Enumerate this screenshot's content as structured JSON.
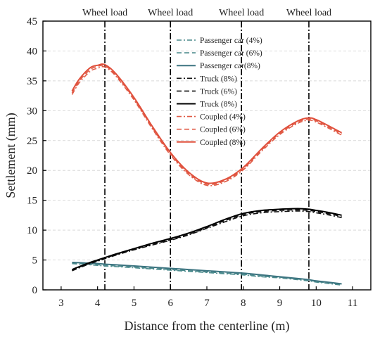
{
  "chart_data": {
    "type": "line",
    "xlabel": "Distance from the centerline (m)",
    "ylabel": "Settlement (mm)",
    "xlim": [
      2.5,
      11.5
    ],
    "ylim": [
      0,
      45
    ],
    "xticks": [
      3,
      4,
      5,
      6,
      7,
      8,
      9,
      10,
      11
    ],
    "yticks": [
      0,
      5,
      10,
      15,
      20,
      25,
      30,
      35,
      40,
      45
    ],
    "grid": true,
    "legend_placement": "top-center",
    "wheel_loads": [
      {
        "x": 4.2,
        "label": "Wheel load"
      },
      {
        "x": 6.0,
        "label": "Wheel load"
      },
      {
        "x": 7.95,
        "label": "Wheel load"
      },
      {
        "x": 9.8,
        "label": "Wheel load"
      }
    ],
    "x": [
      3.3,
      3.5,
      3.8,
      4.0,
      4.2,
      4.5,
      5.0,
      5.5,
      6.0,
      6.5,
      7.0,
      7.5,
      8.0,
      8.5,
      9.0,
      9.5,
      9.8,
      10.0,
      10.3,
      10.7
    ],
    "series": [
      {
        "name": "Passenger car (4%)",
        "color": "#4a8a8c",
        "dash": "dashdot",
        "values": [
          4.4,
          4.3,
          4.2,
          4.1,
          4.0,
          3.9,
          3.7,
          3.5,
          3.3,
          3.1,
          2.9,
          2.7,
          2.5,
          2.2,
          2.0,
          1.7,
          1.5,
          1.3,
          1.1,
          0.8
        ]
      },
      {
        "name": "Passenger car (6%)",
        "color": "#4a8a8c",
        "dash": "dash",
        "values": [
          4.5,
          4.4,
          4.3,
          4.2,
          4.1,
          4.0,
          3.8,
          3.6,
          3.4,
          3.2,
          3.0,
          2.8,
          2.6,
          2.3,
          2.1,
          1.8,
          1.6,
          1.4,
          1.2,
          0.9
        ]
      },
      {
        "name": "Passenger car(8%)",
        "color": "#3c7480",
        "dash": "solid",
        "values": [
          4.6,
          4.55,
          4.45,
          4.4,
          4.3,
          4.2,
          4.0,
          3.8,
          3.6,
          3.4,
          3.2,
          3.0,
          2.8,
          2.5,
          2.2,
          1.9,
          1.7,
          1.5,
          1.3,
          1.0
        ]
      },
      {
        "name": "Truck (8%)",
        "color": "#111111",
        "dash": "dashdot",
        "values": [
          3.2,
          3.7,
          4.4,
          4.8,
          5.2,
          5.8,
          6.7,
          7.5,
          8.3,
          9.2,
          10.3,
          11.4,
          12.4,
          12.9,
          13.1,
          13.2,
          13.1,
          12.9,
          12.6,
          12.1
        ]
      },
      {
        "name": "Truck (6%)",
        "color": "#111111",
        "dash": "dash",
        "values": [
          3.3,
          3.8,
          4.5,
          4.9,
          5.3,
          5.9,
          6.8,
          7.6,
          8.4,
          9.3,
          10.4,
          11.6,
          12.6,
          13.1,
          13.3,
          13.4,
          13.3,
          13.1,
          12.8,
          12.3
        ]
      },
      {
        "name": "Truck (8%)",
        "color": "#000000",
        "dash": "solid",
        "values": [
          3.4,
          3.9,
          4.6,
          5.0,
          5.4,
          6.0,
          6.9,
          7.8,
          8.6,
          9.5,
          10.6,
          11.8,
          12.8,
          13.3,
          13.5,
          13.6,
          13.5,
          13.3,
          13.0,
          12.5
        ]
      },
      {
        "name": "Coupled (4%)",
        "color": "#e05a45",
        "dash": "dashdot",
        "values": [
          32.7,
          34.7,
          36.6,
          37.1,
          37.3,
          35.8,
          31.8,
          27.0,
          22.6,
          19.3,
          17.5,
          18.1,
          20.1,
          23.2,
          26.0,
          27.9,
          28.4,
          28.1,
          27.2,
          25.9
        ]
      },
      {
        "name": "Coupled (6%)",
        "color": "#e05a45",
        "dash": "dash",
        "values": [
          33.0,
          35.0,
          36.9,
          37.4,
          37.5,
          36.0,
          32.0,
          27.2,
          22.8,
          19.5,
          17.7,
          18.3,
          20.3,
          23.4,
          26.2,
          28.1,
          28.6,
          28.3,
          27.4,
          26.1
        ]
      },
      {
        "name": "Coupled (8%)",
        "color": "#e0503c",
        "dash": "solid",
        "values": [
          33.3,
          35.3,
          37.2,
          37.6,
          37.7,
          36.2,
          32.2,
          27.4,
          23.0,
          19.7,
          17.9,
          18.5,
          20.5,
          23.6,
          26.4,
          28.3,
          28.8,
          28.5,
          27.6,
          26.3
        ]
      }
    ]
  }
}
